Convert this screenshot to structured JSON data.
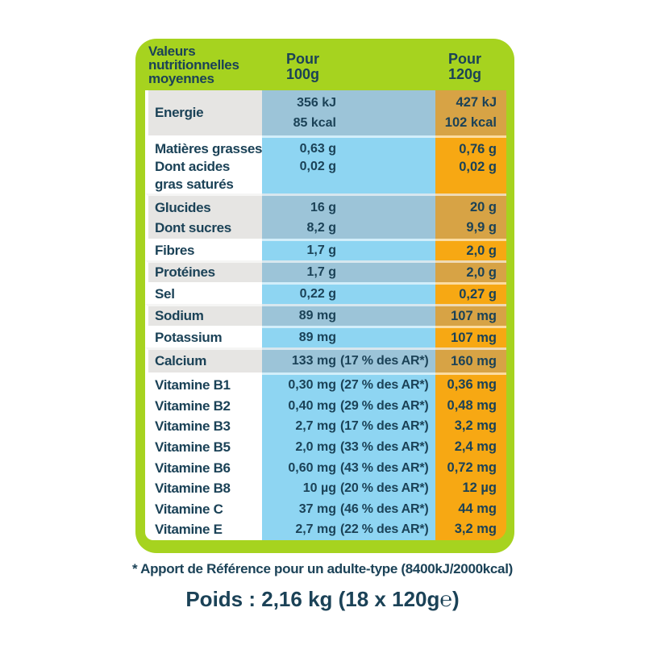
{
  "palette": {
    "frame_green": "#a6d31f",
    "text_navy": "#1b4257",
    "left_gray": "#e6e5e3",
    "blue_bright": "#8ed5f2",
    "blue_muted": "#9cc4d8",
    "orange_bright": "#f7a813",
    "orange_muted": "#d7a345"
  },
  "header": {
    "col1_lines": [
      "Valeurs",
      "nutritionnelles",
      "moyennes"
    ],
    "col2_lines": [
      "Pour",
      "100g"
    ],
    "col3_lines": [
      "Pour",
      "120g"
    ]
  },
  "table": {
    "rows": [
      {
        "name": "energie",
        "label_lines": [
          "Energie"
        ],
        "per_100g": [
          {
            "value": "356 kJ"
          },
          {
            "value": "85 kcal"
          }
        ],
        "per_120g": [
          "427 kJ",
          "102 kcal"
        ]
      },
      {
        "name": "matieres-grasses",
        "label_lines": [
          "Matières grasses",
          "Dont acides",
          "gras saturés"
        ],
        "per_100g": [
          {
            "value": "0,63 g"
          },
          {
            "value": "0,02 g"
          }
        ],
        "per_120g": [
          "0,76 g",
          "0,02 g"
        ]
      },
      {
        "name": "glucides",
        "label_lines": [
          "Glucides",
          "Dont sucres"
        ],
        "per_100g": [
          {
            "value": "16 g"
          },
          {
            "value": "8,2 g"
          }
        ],
        "per_120g": [
          "20 g",
          "9,9 g"
        ]
      },
      {
        "name": "fibres",
        "label_lines": [
          "Fibres"
        ],
        "per_100g": [
          {
            "value": "1,7 g"
          }
        ],
        "per_120g": [
          "2,0 g"
        ]
      },
      {
        "name": "proteines",
        "label_lines": [
          "Protéines"
        ],
        "per_100g": [
          {
            "value": "1,7 g"
          }
        ],
        "per_120g": [
          "2,0 g"
        ]
      },
      {
        "name": "sel",
        "label_lines": [
          "Sel"
        ],
        "per_100g": [
          {
            "value": "0,22 g"
          }
        ],
        "per_120g": [
          "0,27 g"
        ]
      },
      {
        "name": "sodium",
        "label_lines": [
          "Sodium"
        ],
        "per_100g": [
          {
            "value": "89 mg"
          }
        ],
        "per_120g": [
          "107 mg"
        ]
      },
      {
        "name": "potassium",
        "label_lines": [
          "Potassium"
        ],
        "per_100g": [
          {
            "value": "89 mg"
          }
        ],
        "per_120g": [
          "107 mg"
        ]
      },
      {
        "name": "calcium",
        "label_lines": [
          "Calcium"
        ],
        "per_100g": [
          {
            "value": "133 mg",
            "note": "(17 % des AR*)"
          }
        ],
        "per_120g": [
          "160 mg"
        ]
      },
      {
        "name": "vitamines",
        "label_lines": [
          "Vitamine B1",
          "Vitamine B2",
          "Vitamine B3",
          "Vitamine B5",
          "Vitamine B6",
          "Vitamine B8",
          "Vitamine C",
          "Vitamine E"
        ],
        "per_100g": [
          {
            "value": "0,30 mg",
            "note": "(27 % des AR*)"
          },
          {
            "value": "0,40 mg",
            "note": "(29 % des AR*)"
          },
          {
            "value": "2,7 mg",
            "note": "(17 % des AR*)"
          },
          {
            "value": "2,0 mg",
            "note": "(33 % des AR*)"
          },
          {
            "value": "0,60 mg",
            "note": "(43 % des AR*)"
          },
          {
            "value": "10 µg",
            "note": "(20 % des AR*)"
          },
          {
            "value": "37 mg",
            "note": "(46 % des AR*)"
          },
          {
            "value": "2,7 mg",
            "note": "(22 % des AR*)"
          }
        ],
        "per_120g": [
          "0,36 mg",
          "0,48 mg",
          "3,2 mg",
          "2,4 mg",
          "0,72 mg",
          "12 µg",
          "44 mg",
          "3,2 mg"
        ]
      }
    ]
  },
  "footer": {
    "footnote": "* Apport de Référence pour un adulte-type (8400kJ/2000kcal)",
    "weight": "Poids : 2,16 kg (18 x 120g℮)"
  }
}
